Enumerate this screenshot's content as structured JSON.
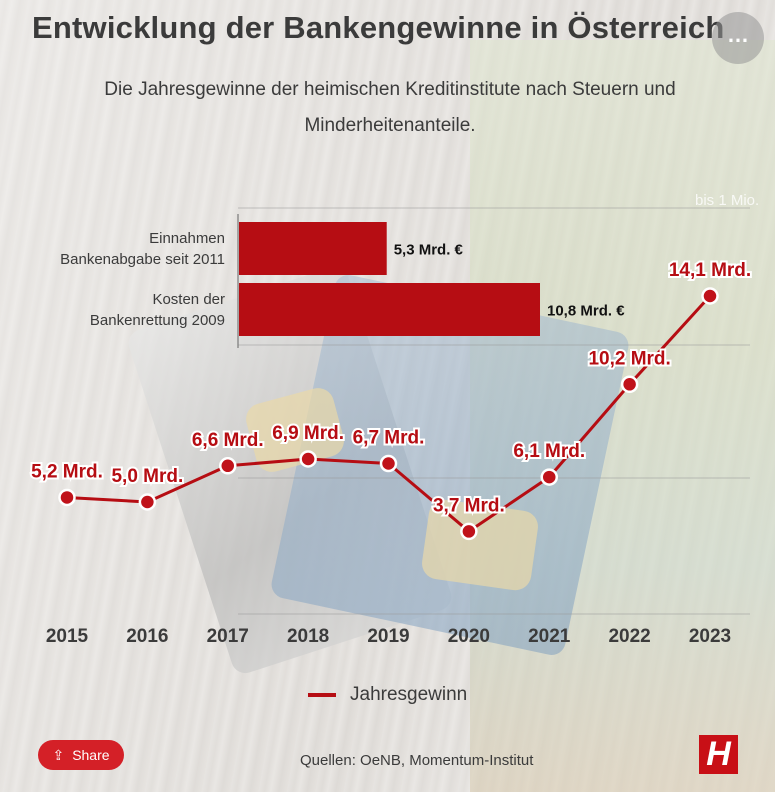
{
  "header": {
    "title": "Entwicklung der Bankengewinne in Österreich",
    "subtitle": "Die Jahresgewinne der heimischen Kreditinstitute nach Steuern und Minderheitenanteile.",
    "menu_icon": "ellipsis-icon",
    "menu_glyph": "…"
  },
  "background_label": "bis 1 Mio.",
  "legend": {
    "label": "Jahresgewinn",
    "color": "#b60d13"
  },
  "footer": {
    "sources": "Quellen: OeNB, Momentum-Institut",
    "share_label": "Share",
    "share_icon": "share-icon",
    "share_glyph": "⇪",
    "logo_text": "H",
    "logo_icon": "brand-logo-icon"
  },
  "colors": {
    "accent": "#b60d13",
    "text": "#3b3b3b",
    "marker_fill": "#c0121a"
  },
  "chart_data": [
    {
      "type": "bar",
      "orientation": "horizontal",
      "categories": [
        "Einnahmen\nBankenabgabe seit 2011",
        "Kosten der\nBankenrettung 2009"
      ],
      "values": [
        5.3,
        10.8
      ],
      "value_labels": [
        "5,3 Mrd. €",
        "10,8 Mrd. €"
      ],
      "unit": "Mrd. €"
    },
    {
      "type": "line",
      "x": [
        "2015",
        "2016",
        "2017",
        "2018",
        "2019",
        "2020",
        "2021",
        "2022",
        "2023"
      ],
      "series": [
        {
          "name": "Jahresgewinn",
          "values": [
            5.2,
            5.0,
            6.6,
            6.9,
            6.7,
            3.7,
            6.1,
            10.2,
            14.1
          ],
          "labels": [
            "5,2 Mrd.",
            "5,0 Mrd.",
            "6,6 Mrd.",
            "6,9 Mrd.",
            "6,7 Mrd.",
            "3,7 Mrd.",
            "6,1 Mrd.",
            "10,2 Mrd.",
            "14,1 Mrd."
          ]
        }
      ],
      "grid": true,
      "legend": "bottom"
    }
  ]
}
